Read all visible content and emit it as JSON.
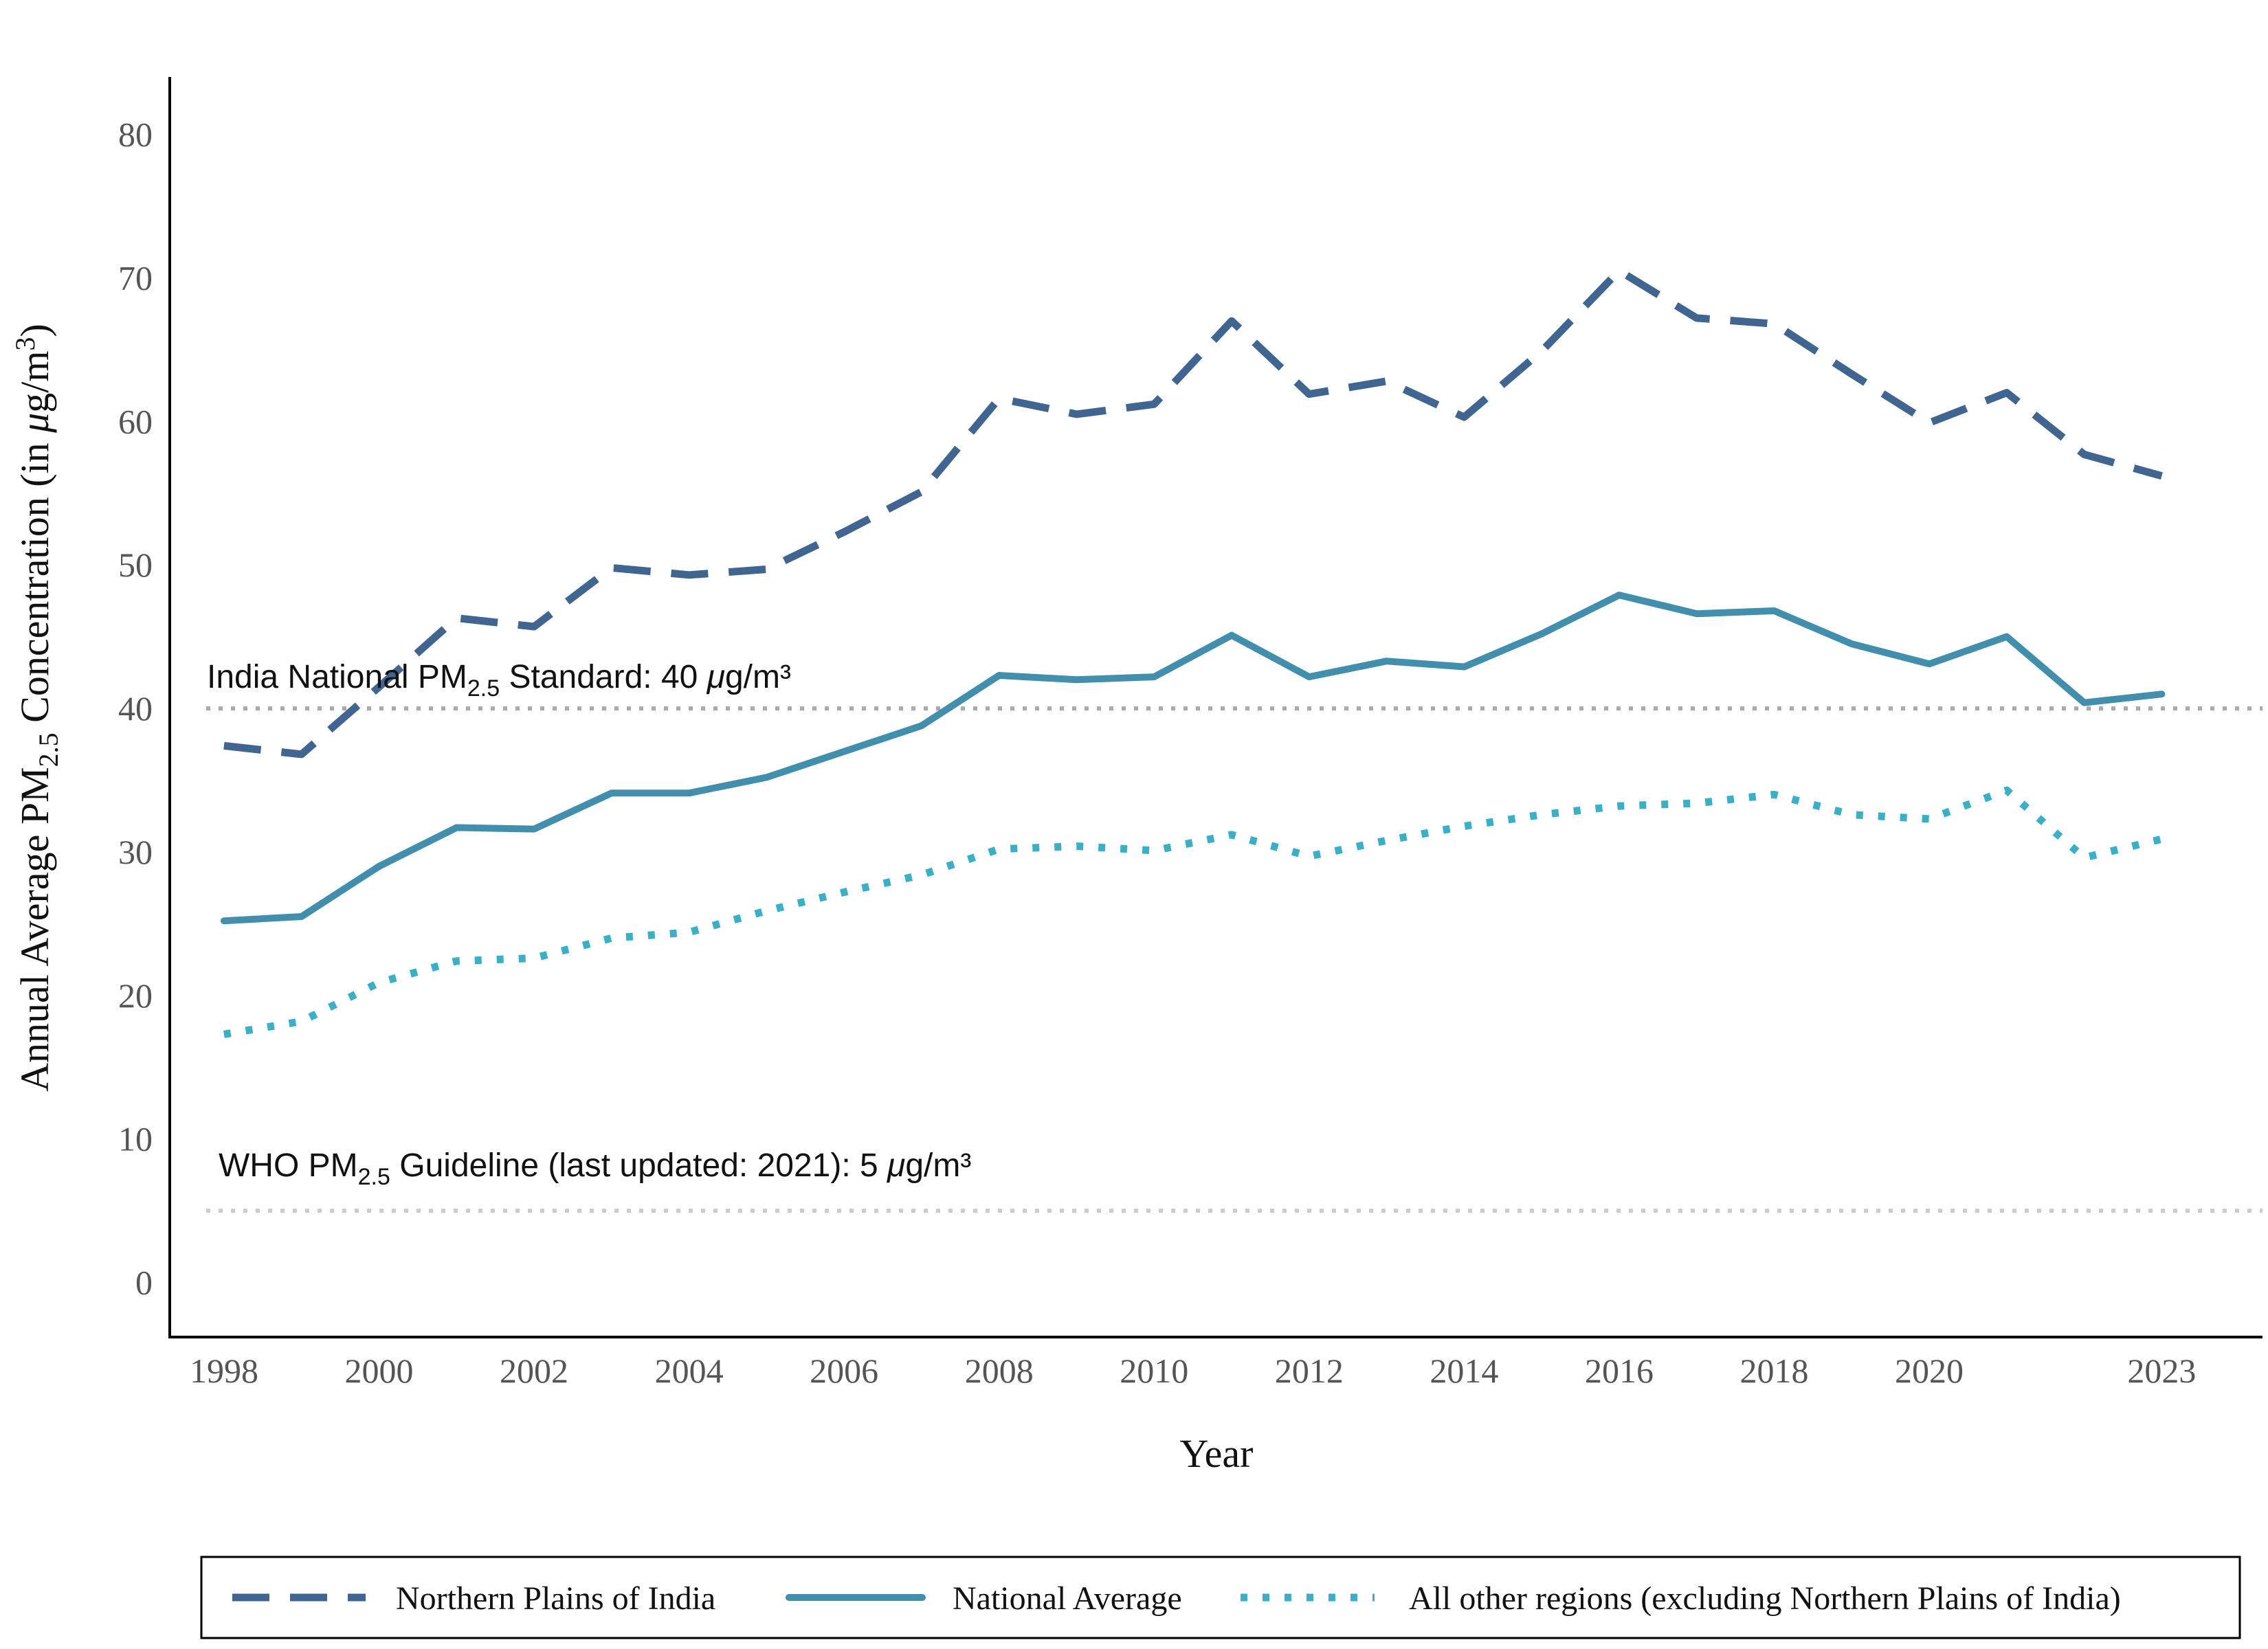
{
  "chart_data": {
    "type": "line",
    "xlabel": "Year",
    "ylabel": {
      "before": "Annual Average  PM",
      "sub": "2.5",
      "middle": "  Concentration (in ",
      "mu": "μ",
      "unit": "g/m",
      "sup": "3",
      "after": ")"
    },
    "x": [
      1998,
      1999,
      2000,
      2001,
      2002,
      2003,
      2004,
      2005,
      2006,
      2007,
      2008,
      2009,
      2010,
      2011,
      2012,
      2013,
      2014,
      2015,
      2016,
      2017,
      2018,
      2019,
      2020,
      2021,
      2022,
      2023
    ],
    "x_ticks": [
      1998,
      2000,
      2002,
      2004,
      2006,
      2008,
      2010,
      2012,
      2014,
      2016,
      2018,
      2020,
      2023
    ],
    "x_range": [
      1997.3,
      2024.3
    ],
    "y_ticks": [
      0,
      10,
      20,
      30,
      40,
      50,
      60,
      70,
      80
    ],
    "ylim": [
      -3.8,
      84
    ],
    "grid": false,
    "legend_position": "bottom",
    "series": [
      {
        "name": "Northern Plains of India",
        "style": "dashed",
        "color": "#3f6590",
        "values": [
          37.4,
          36.8,
          41.5,
          46.3,
          45.7,
          49.8,
          49.3,
          49.7,
          52.3,
          55.1,
          61.6,
          60.5,
          61.2,
          67.0,
          61.9,
          62.8,
          60.3,
          64.9,
          70.5,
          67.2,
          66.8,
          63.3,
          59.9,
          62.0,
          57.7,
          56.2
        ]
      },
      {
        "name": "National Average",
        "style": "solid",
        "color": "#418fac",
        "values": [
          25.2,
          25.5,
          29.0,
          31.7,
          31.6,
          34.1,
          34.1,
          35.2,
          37.0,
          38.8,
          42.3,
          42.0,
          42.2,
          45.1,
          42.2,
          43.3,
          42.9,
          45.2,
          47.9,
          46.6,
          46.8,
          44.5,
          43.1,
          45.0,
          40.4,
          41.0
        ]
      },
      {
        "name": "All other regions (excluding Northern Plains of India)",
        "style": "dotted",
        "color": "#3ab0c6",
        "values": [
          17.3,
          18.2,
          20.9,
          22.4,
          22.6,
          24.0,
          24.4,
          25.9,
          27.2,
          28.4,
          30.2,
          30.4,
          30.1,
          31.2,
          29.7,
          30.8,
          31.8,
          32.6,
          33.2,
          33.4,
          34.0,
          32.6,
          32.3,
          34.3,
          29.6,
          30.9
        ]
      }
    ],
    "reference_lines": [
      {
        "y": 40,
        "color": "#aaaaaa",
        "label": {
          "before": "India National PM",
          "sub": "2.5",
          "after": " Standard: 40 ",
          "mu": "μ",
          "unit": "g/m³"
        }
      },
      {
        "y": 5,
        "color": "#cccccc",
        "label": {
          "before": "WHO PM",
          "sub": "2.5",
          "after": " Guideline (last updated: 2021): 5 ",
          "mu": "μ",
          "unit": "g/m³"
        }
      }
    ]
  }
}
